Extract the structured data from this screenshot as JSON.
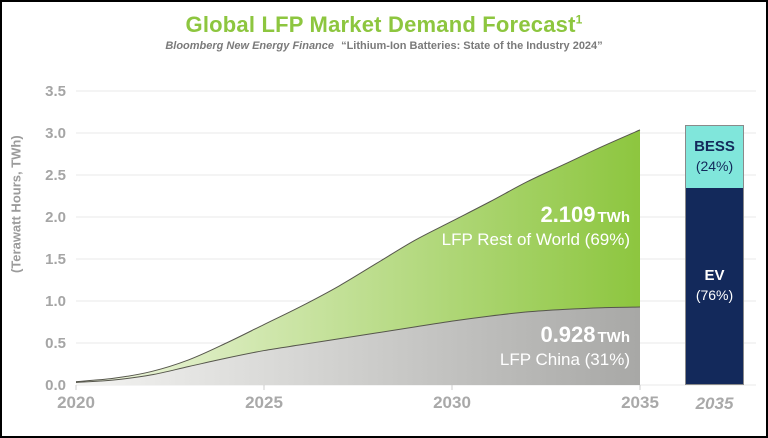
{
  "header": {
    "title": "Global LFP Market Demand Forecast",
    "title_superscript": "1",
    "subtitle_source": "Bloomberg New Energy Finance",
    "subtitle_quote": "“Lithium-Ion Batteries: State of the Industry 2024”"
  },
  "colors": {
    "title_green": "#8DC63F",
    "grid": "#E9E9E9",
    "tick": "#CCCCCC",
    "axis_text": "#A5A5A5",
    "area_green_start": "#F1F7E4",
    "area_green_end": "#8DC63F",
    "area_gray_start": "#F4F4F2",
    "area_gray_end": "#A8A8A6",
    "area_stroke": "#56564C",
    "bess_fill": "#80E6DB",
    "ev_fill": "#13295B",
    "bess_text": "#13295B",
    "ev_text": "#FFFFFF"
  },
  "chart_data": {
    "type": "area",
    "stacked": true,
    "title": "Global LFP Market Demand Forecast",
    "source_note": "Bloomberg New Energy Finance “Lithium-Ion Batteries: State of the Industry 2024”",
    "ylabel": "(Terawatt Hours, TWh)",
    "ylim": [
      0,
      3.5
    ],
    "grid": true,
    "y_ticks": [
      "0.0",
      "0.5",
      "1.0",
      "1.5",
      "2.0",
      "2.5",
      "3.0",
      "3.5"
    ],
    "x_ticks": [
      "2020",
      "2025",
      "2030",
      "2035"
    ],
    "x": [
      2020,
      2021,
      2022,
      2023,
      2024,
      2025,
      2026,
      2027,
      2028,
      2029,
      2030,
      2031,
      2032,
      2033,
      2034,
      2035
    ],
    "series": [
      {
        "name": "LFP China",
        "final_value_twh": 0.928,
        "share_of_total": "31%",
        "values": [
          0.03,
          0.06,
          0.12,
          0.22,
          0.32,
          0.41,
          0.48,
          0.55,
          0.62,
          0.69,
          0.76,
          0.82,
          0.87,
          0.9,
          0.92,
          0.928
        ]
      },
      {
        "name": "LFP Rest of World",
        "final_value_twh": 2.109,
        "share_of_total": "69%",
        "values": [
          0.01,
          0.02,
          0.04,
          0.08,
          0.18,
          0.31,
          0.46,
          0.63,
          0.83,
          1.03,
          1.19,
          1.36,
          1.55,
          1.73,
          1.92,
          2.109
        ]
      }
    ],
    "annotations": {
      "row": {
        "value": "2.109",
        "unit": "TWh",
        "label": "LFP Rest of World (69%)"
      },
      "china": {
        "value": "0.928",
        "unit": "TWh",
        "label": "LFP China (31%)"
      }
    },
    "bar_2035": {
      "x_label": "2035",
      "total_twh": 3.037,
      "segments": [
        {
          "name": "BESS",
          "pct_label": "(24%)",
          "fraction": 0.24
        },
        {
          "name": "EV",
          "pct_label": "(76%)",
          "fraction": 0.76
        }
      ]
    }
  }
}
